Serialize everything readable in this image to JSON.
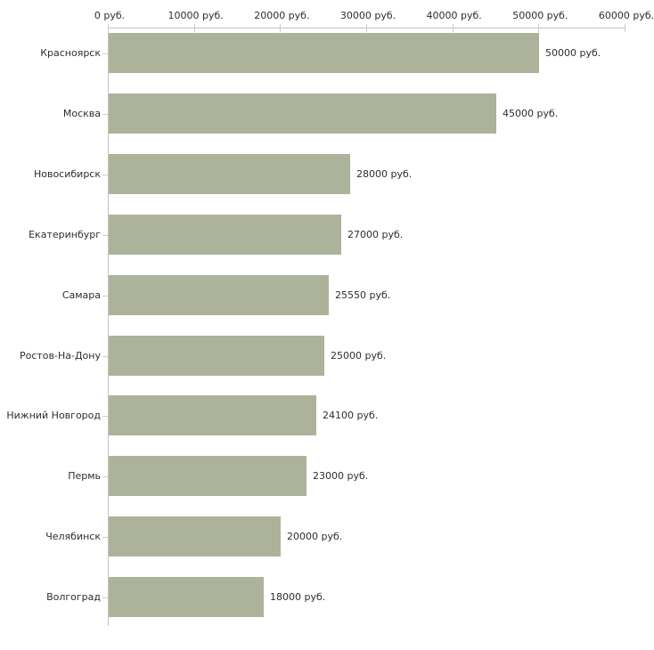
{
  "chart_data": {
    "type": "bar",
    "orientation": "horizontal",
    "title": "",
    "xlabel": "",
    "ylabel": "",
    "xlim": [
      0,
      60000
    ],
    "grid": false,
    "legend": false,
    "x_tick_labels": [
      "0 руб.",
      "10000 руб.",
      "20000 руб.",
      "30000 руб.",
      "40000 руб.",
      "50000 руб.",
      "60000 руб."
    ],
    "x_tick_values": [
      0,
      10000,
      20000,
      30000,
      40000,
      50000,
      60000
    ],
    "categories": [
      "Красноярск",
      "Москва",
      "Новосибирск",
      "Екатеринбург",
      "Самара",
      "Ростов-На-Дону",
      "Нижний Новгород",
      "Пермь",
      "Челябинск",
      "Волгоград"
    ],
    "values": [
      50000,
      45000,
      28000,
      27000,
      25550,
      25000,
      24100,
      23000,
      20000,
      18000
    ],
    "value_labels": [
      "50000 руб.",
      "45000 руб.",
      "28000 руб.",
      "27000 руб.",
      "25550 руб.",
      "25000 руб.",
      "24100 руб.",
      "23000 руб.",
      "20000 руб.",
      "18000 руб."
    ],
    "colors": {
      "bar_fill": "#adb29a",
      "axis_line": "#c3c3c3",
      "tick_mark": "#d2d0ac",
      "text": "#2e2e2e",
      "background": "#ffffff"
    }
  }
}
